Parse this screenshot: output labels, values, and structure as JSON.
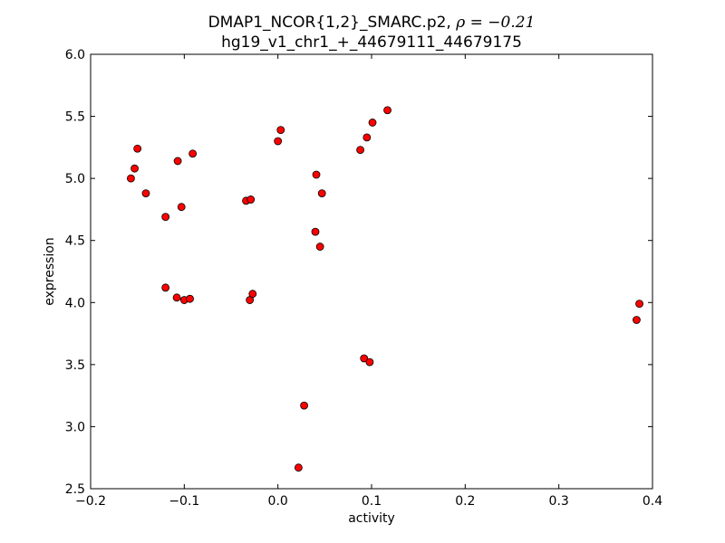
{
  "chart_data": {
    "type": "scatter",
    "title_line1": "DMAP1_NCOR{1,2}_SMARC.p2, ",
    "title_rho": "ρ = −0.21",
    "title_line2": "hg19_v1_chr1_+_44679111_44679175",
    "xlabel": "activity",
    "ylabel": "expression",
    "xlim": [
      -0.2,
      0.4
    ],
    "ylim": [
      2.5,
      6.0
    ],
    "xticks": [
      -0.2,
      -0.1,
      0.0,
      0.1,
      0.2,
      0.3,
      0.4
    ],
    "xtick_labels": [
      "−0.2",
      "−0.1",
      "0.0",
      "0.1",
      "0.2",
      "0.3",
      "0.4"
    ],
    "yticks": [
      2.5,
      3.0,
      3.5,
      4.0,
      4.5,
      5.0,
      5.5,
      6.0
    ],
    "ytick_labels": [
      "2.5",
      "3.0",
      "3.5",
      "4.0",
      "4.5",
      "5.0",
      "5.5",
      "6.0"
    ],
    "grid": false,
    "marker_color": "#ff0000",
    "marker_edge": "#000000",
    "x": [
      -0.157,
      -0.153,
      -0.15,
      -0.141,
      -0.12,
      -0.12,
      -0.108,
      -0.107,
      -0.103,
      -0.1,
      -0.094,
      -0.091,
      -0.034,
      -0.029,
      -0.03,
      -0.027,
      0.0,
      0.003,
      0.022,
      0.028,
      0.04,
      0.041,
      0.045,
      0.047,
      0.088,
      0.092,
      0.095,
      0.098,
      0.101,
      0.117,
      0.383,
      0.386
    ],
    "y": [
      5.0,
      5.08,
      5.24,
      4.88,
      4.69,
      4.12,
      4.04,
      5.14,
      4.77,
      4.02,
      4.03,
      5.2,
      4.82,
      4.83,
      4.02,
      4.07,
      5.3,
      5.39,
      2.67,
      3.17,
      4.57,
      5.03,
      4.45,
      4.88,
      5.23,
      3.55,
      5.33,
      3.52,
      5.45,
      5.55,
      3.86,
      3.99
    ]
  }
}
